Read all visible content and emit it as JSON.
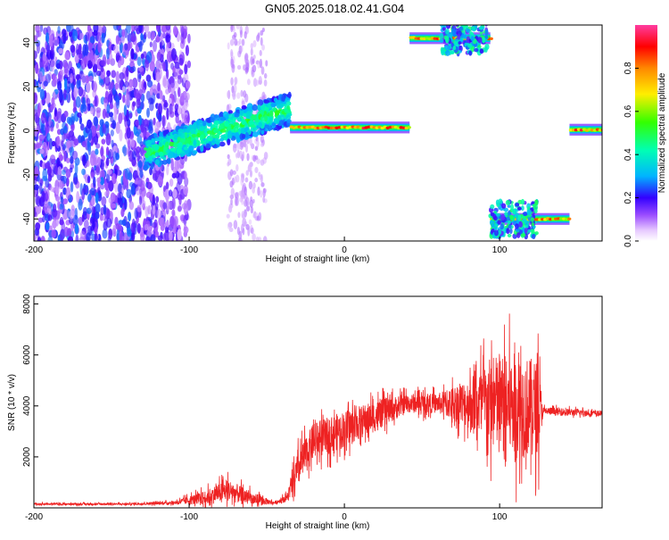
{
  "title": "GN05.2025.018.02.41.G04",
  "chart_data": [
    {
      "type": "heatmap",
      "xlabel": "Height of straight line (km)",
      "ylabel": "Frequency (Hz)",
      "xlim": [
        -200,
        166
      ],
      "ylim": [
        -50,
        48
      ],
      "xticks": [
        -200,
        -100,
        0,
        100
      ],
      "yticks": [
        -40,
        -20,
        0,
        20,
        40
      ],
      "colorbar": {
        "label": "Normalized spectral amplitude",
        "range": [
          0,
          1
        ],
        "ticks": [
          0.0,
          0.2,
          0.4,
          0.6,
          0.8
        ]
      },
      "features": [
        {
          "name": "scatter-noise",
          "x_range": [
            -200,
            -100
          ],
          "y_range": [
            -50,
            48
          ]
        },
        {
          "name": "diffuse-noise",
          "x_range": [
            -75,
            -50
          ],
          "y_range": [
            -50,
            48
          ]
        },
        {
          "name": "rising-band",
          "x_range": [
            -128,
            -35
          ],
          "y_range": [
            -10,
            10
          ]
        },
        {
          "name": "main-tone",
          "x_range": [
            -35,
            42
          ],
          "y_value": 1.5
        },
        {
          "name": "upper-tone",
          "x_range": [
            42,
            94
          ],
          "y_value": 42
        },
        {
          "name": "lower-tone",
          "x_range": [
            94,
            145
          ],
          "y_value": -40
        },
        {
          "name": "end-tone",
          "x_range": [
            145,
            166
          ],
          "y_value": 0.5
        }
      ]
    },
    {
      "type": "line",
      "xlabel": "Height of straight line (km)",
      "ylabel": "SNR (10 * v/v)",
      "xlim": [
        -200,
        166
      ],
      "ylim": [
        0,
        8300
      ],
      "xticks": [
        -200,
        -100,
        0,
        100
      ],
      "yticks": [
        2000,
        4000,
        6000,
        8000
      ],
      "series_color": "#ee2222",
      "envelope": [
        {
          "x": -200,
          "mean": 150,
          "amp": 70
        },
        {
          "x": -140,
          "mean": 150,
          "amp": 70
        },
        {
          "x": -110,
          "mean": 200,
          "amp": 120
        },
        {
          "x": -90,
          "mean": 400,
          "amp": 500
        },
        {
          "x": -75,
          "mean": 700,
          "amp": 800
        },
        {
          "x": -60,
          "mean": 350,
          "amp": 500
        },
        {
          "x": -45,
          "mean": 200,
          "amp": 100
        },
        {
          "x": -37,
          "mean": 400,
          "amp": 300
        },
        {
          "x": -30,
          "mean": 1500,
          "amp": 1300
        },
        {
          "x": -20,
          "mean": 2600,
          "amp": 1300
        },
        {
          "x": 0,
          "mean": 3100,
          "amp": 1300
        },
        {
          "x": 20,
          "mean": 3600,
          "amp": 1100
        },
        {
          "x": 40,
          "mean": 4100,
          "amp": 700
        },
        {
          "x": 60,
          "mean": 4100,
          "amp": 700
        },
        {
          "x": 80,
          "mean": 4100,
          "amp": 1800
        },
        {
          "x": 95,
          "mean": 4100,
          "amp": 3400
        },
        {
          "x": 110,
          "mean": 4000,
          "amp": 3800
        },
        {
          "x": 125,
          "mean": 3900,
          "amp": 3400
        },
        {
          "x": 128,
          "mean": 3800,
          "amp": 300
        },
        {
          "x": 166,
          "mean": 3700,
          "amp": 200
        }
      ]
    }
  ]
}
